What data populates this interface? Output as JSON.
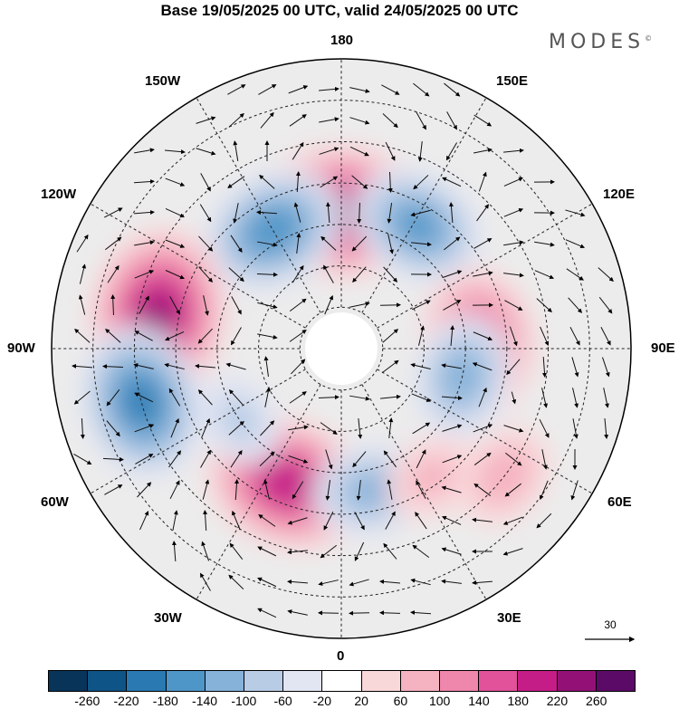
{
  "title": "Base 19/05/2025 00 UTC, valid 24/05/2025 00 UTC",
  "brand": "MODES",
  "brand_mark": "©",
  "longitude_labels": {
    "top": "180",
    "bottom": "0",
    "left": "90W",
    "right": "90E",
    "upper_left_1": "150W",
    "upper_left_2": "120W",
    "upper_right_1": "150E",
    "upper_right_2": "120E",
    "lower_left_1": "60W",
    "lower_left_2": "30W",
    "lower_right_1": "60E",
    "lower_right_2": "30E"
  },
  "reference_vector": {
    "label": "30"
  },
  "colorbar": {
    "colors": [
      "#08345a",
      "#0f5486",
      "#2a79b2",
      "#4f96c8",
      "#86b2d9",
      "#b8cce6",
      "#e2e5f2",
      "#ffffff",
      "#f9d8da",
      "#f5b2c0",
      "#ef86ab",
      "#e1529a",
      "#c51d87",
      "#931177",
      "#5c0a67"
    ],
    "tick_labels": [
      "-260",
      "-220",
      "-180",
      "-140",
      "-100",
      "-60",
      "-20",
      "20",
      "60",
      "100",
      "140",
      "180",
      "220",
      "260"
    ]
  },
  "anomaly_centers": [
    {
      "lon": 180,
      "lat": 57,
      "value": 230
    },
    {
      "lon": -150,
      "lat": 57,
      "value": -170
    },
    {
      "lon": 148,
      "lat": 55,
      "value": -150
    },
    {
      "lon": -100,
      "lat": 45,
      "value": 240
    },
    {
      "lon": -75,
      "lat": 40,
      "value": -190
    },
    {
      "lon": -22,
      "lat": 55,
      "value": 215
    },
    {
      "lon": 92,
      "lat": 57,
      "value": 180
    },
    {
      "lon": 77,
      "lat": 60,
      "value": -120
    },
    {
      "lon": 12,
      "lat": 55,
      "value": -110
    },
    {
      "lon": 52,
      "lat": 40,
      "value": 80
    },
    {
      "lon": 35,
      "lat": 52,
      "value": 60
    },
    {
      "lon": -55,
      "lat": 60,
      "value": -60
    }
  ]
}
